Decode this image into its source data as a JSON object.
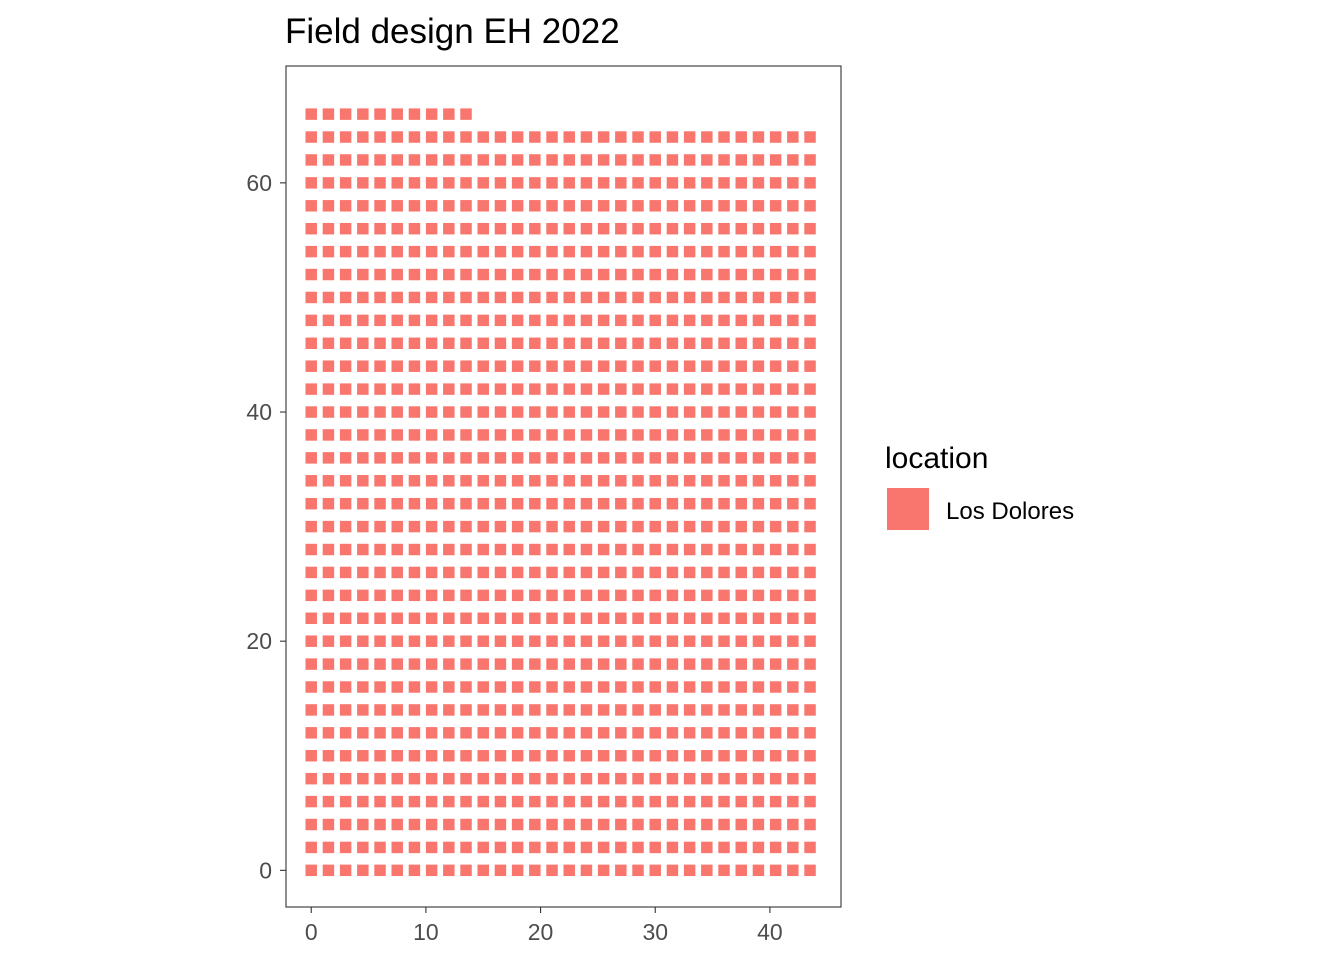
{
  "chart_data": {
    "type": "heatmap",
    "title": "Field design EH 2022",
    "subtitle": "",
    "xlabel": "",
    "ylabel": "",
    "xlim": [
      -2.2,
      46.2
    ],
    "ylim": [
      -3.2,
      70.2
    ],
    "x_ticks": [
      0,
      10,
      20,
      30,
      40
    ],
    "y_ticks": [
      0,
      20,
      40,
      60
    ],
    "grid": false,
    "legend": {
      "title": "location",
      "position": "right",
      "entries": [
        {
          "name": "Los Dolores",
          "color": "#F8766D"
        }
      ]
    },
    "series": [
      {
        "name": "Los Dolores",
        "color": "#F8766D",
        "cell_width": 1.0,
        "cell_height": 1.0,
        "row_groups": [
          {
            "x_start": 0,
            "x_end": 44,
            "x_step": 1.5,
            "y_start": 0,
            "y_end": 64,
            "y_step": 2
          },
          {
            "x_start": 0,
            "x_end": 14,
            "x_step": 1.5,
            "y_start": 66,
            "y_end": 66,
            "y_step": 2
          }
        ]
      }
    ]
  }
}
